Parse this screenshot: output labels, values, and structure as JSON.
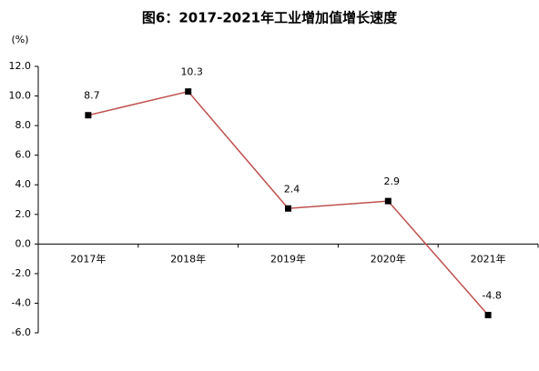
{
  "chart_data": {
    "type": "line",
    "title": "图6：2017-2021年工业增加值增长速度",
    "y_unit": "(%)",
    "categories": [
      "2017年",
      "2018年",
      "2019年",
      "2020年",
      "2021年"
    ],
    "series": [
      {
        "name": "工业增加值增长速度",
        "color": "#c0504d",
        "values": [
          8.7,
          10.3,
          2.4,
          2.9,
          -4.8
        ]
      }
    ],
    "ylim": [
      -6,
      12
    ],
    "yticks": [
      {
        "value": -6,
        "label": "-6.0"
      },
      {
        "value": -4,
        "label": "-4.0"
      },
      {
        "value": -2,
        "label": "-2.0"
      },
      {
        "value": 0,
        "label": "0.0"
      },
      {
        "value": 2,
        "label": "2.0"
      },
      {
        "value": 4,
        "label": "4.0"
      },
      {
        "value": 6,
        "label": "6.0"
      },
      {
        "value": 8,
        "label": "8.0"
      },
      {
        "value": 10,
        "label": "10.0"
      },
      {
        "value": 12,
        "label": "12.0"
      }
    ],
    "marker_color": "#000000",
    "grid": false
  }
}
